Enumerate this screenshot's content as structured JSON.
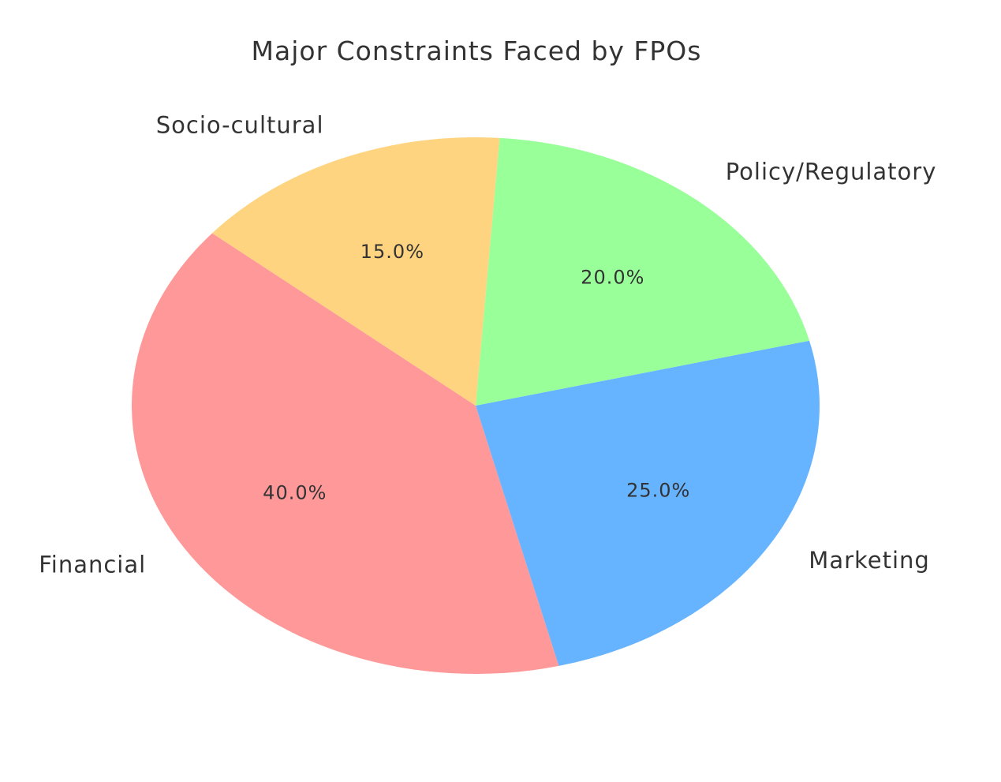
{
  "chart_data": {
    "type": "pie",
    "title": "Major Constraints Faced by FPOs",
    "slices": [
      {
        "label": "Financial",
        "value": 40,
        "pct_label": "40.0%",
        "color": "#ff9999"
      },
      {
        "label": "Marketing",
        "value": 25,
        "pct_label": "25.0%",
        "color": "#66b3ff"
      },
      {
        "label": "Policy/Regulatory",
        "value": 20,
        "pct_label": "20.0%",
        "color": "#99ff99"
      },
      {
        "label": "Socio-cultural",
        "value": 15,
        "pct_label": "15.0%",
        "color": "#ffd480"
      }
    ],
    "start_angle_deg": 140,
    "direction": "counterclockwise",
    "legend": "none"
  }
}
